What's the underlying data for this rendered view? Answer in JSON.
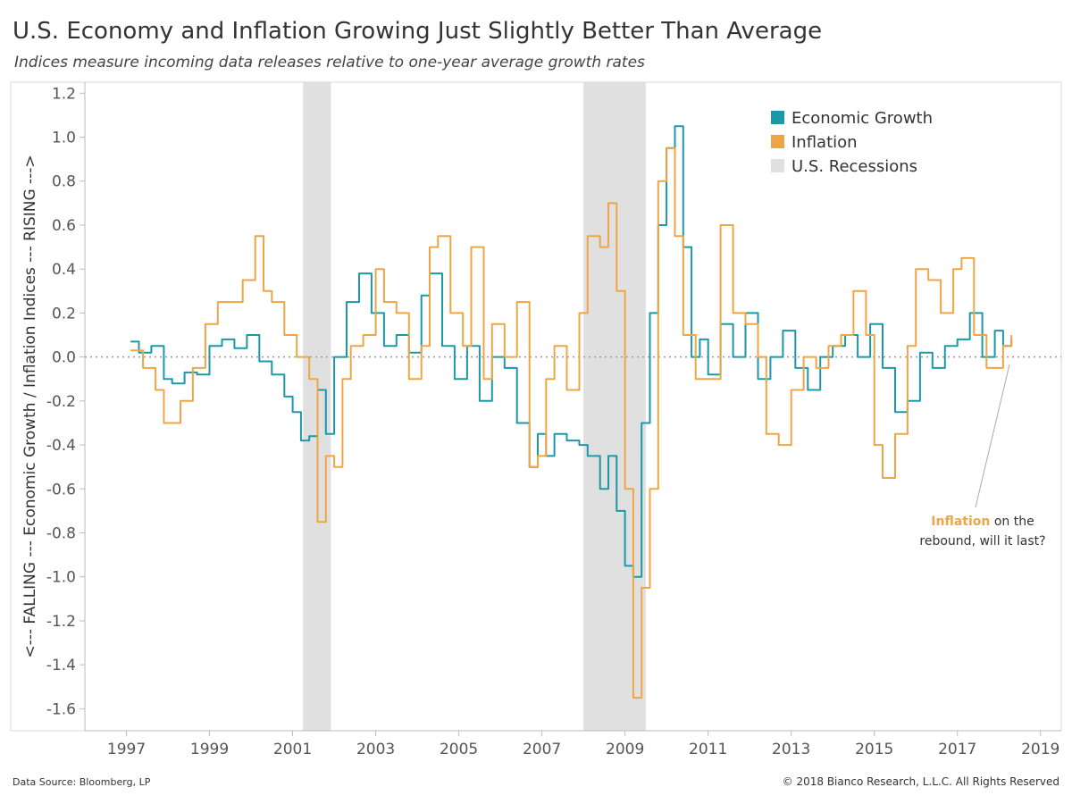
{
  "header": {
    "title": "U.S. Economy and Inflation Growing Just Slightly Better Than Average",
    "subtitle": "Indices measure incoming data releases relative to one-year average growth rates"
  },
  "footer": {
    "source": "Data Source: Bloomberg, LP",
    "copyright": "© 2018 Bianco Research, L.L.C. All Rights Reserved"
  },
  "colors": {
    "economic_growth": "#1a9aa8",
    "inflation": "#f0a545",
    "recession": "#e0e0e0",
    "zero_line": "#999999"
  },
  "chart_data": {
    "type": "line",
    "title": "U.S. Economy and Inflation Growing Just Slightly Better Than Average",
    "ylabel": "<--- FALLING --- Economic Growth / Inflation Indices --- RISING --->",
    "xlabel": "",
    "xlim": [
      1996.0,
      2019.5
    ],
    "ylim": [
      -1.7,
      1.25
    ],
    "x_ticks": [
      "1997",
      "1999",
      "2001",
      "2003",
      "2005",
      "2007",
      "2009",
      "2011",
      "2013",
      "2015",
      "2017",
      "2019"
    ],
    "y_ticks": [
      "1.2",
      "1.0",
      "0.8",
      "0.6",
      "0.4",
      "0.2",
      "0.0",
      "-0.2",
      "-0.4",
      "-0.6",
      "-0.8",
      "-1.0",
      "-1.2",
      "-1.4",
      "-1.6"
    ],
    "legend": {
      "position": "top-right",
      "entries": [
        "Economic Growth",
        "Inflation",
        "U.S. Recessions"
      ]
    },
    "recessions": [
      {
        "start": 2001.25,
        "end": 2001.92
      },
      {
        "start": 2008.0,
        "end": 2009.5
      }
    ],
    "series": [
      {
        "name": "Economic Growth",
        "color": "#1a9aa8",
        "x": [
          1997.1,
          1997.3,
          1997.6,
          1997.9,
          1998.1,
          1998.4,
          1998.7,
          1999.0,
          1999.3,
          1999.6,
          1999.9,
          2000.2,
          2000.5,
          2000.8,
          2001.0,
          2001.2,
          2001.4,
          2001.6,
          2001.8,
          2002.0,
          2002.3,
          2002.6,
          2002.9,
          2003.2,
          2003.5,
          2003.8,
          2004.1,
          2004.3,
          2004.6,
          2004.9,
          2005.2,
          2005.5,
          2005.8,
          2006.1,
          2006.4,
          2006.7,
          2006.9,
          2007.1,
          2007.3,
          2007.6,
          2007.9,
          2008.1,
          2008.4,
          2008.6,
          2008.8,
          2009.0,
          2009.2,
          2009.4,
          2009.6,
          2009.8,
          2010.0,
          2010.2,
          2010.4,
          2010.6,
          2010.8,
          2011.0,
          2011.3,
          2011.6,
          2011.9,
          2012.2,
          2012.5,
          2012.8,
          2013.1,
          2013.4,
          2013.7,
          2014.0,
          2014.3,
          2014.6,
          2014.9,
          2015.2,
          2015.5,
          2015.8,
          2016.1,
          2016.4,
          2016.7,
          2017.0,
          2017.3,
          2017.6,
          2017.9,
          2018.1,
          2018.3
        ],
        "y": [
          0.07,
          0.02,
          0.05,
          -0.1,
          -0.12,
          -0.07,
          -0.08,
          0.05,
          0.08,
          0.04,
          0.1,
          -0.02,
          -0.08,
          -0.18,
          -0.25,
          -0.38,
          -0.36,
          -0.15,
          -0.35,
          0.0,
          0.25,
          0.38,
          0.2,
          0.05,
          0.1,
          0.02,
          0.28,
          0.38,
          0.05,
          -0.1,
          0.05,
          -0.2,
          0.0,
          -0.05,
          -0.3,
          -0.5,
          -0.35,
          -0.45,
          -0.35,
          -0.38,
          -0.4,
          -0.45,
          -0.6,
          -0.45,
          -0.7,
          -0.95,
          -1.0,
          -0.3,
          0.2,
          0.6,
          0.95,
          1.05,
          0.5,
          0.0,
          0.08,
          -0.08,
          0.15,
          0.0,
          0.2,
          -0.1,
          0.0,
          0.12,
          -0.05,
          -0.15,
          0.0,
          0.05,
          0.1,
          0.0,
          0.15,
          -0.05,
          -0.25,
          -0.2,
          0.02,
          -0.05,
          0.05,
          0.08,
          0.2,
          0.0,
          0.12,
          0.05,
          0.08
        ]
      },
      {
        "name": "Inflation",
        "color": "#f0a545",
        "x": [
          1997.1,
          1997.4,
          1997.7,
          1997.9,
          1998.1,
          1998.3,
          1998.6,
          1998.9,
          1999.2,
          1999.5,
          1999.8,
          2000.1,
          2000.3,
          2000.5,
          2000.8,
          2001.1,
          2001.4,
          2001.6,
          2001.8,
          2002.0,
          2002.2,
          2002.4,
          2002.7,
          2003.0,
          2003.2,
          2003.5,
          2003.8,
          2004.1,
          2004.3,
          2004.5,
          2004.8,
          2005.1,
          2005.3,
          2005.6,
          2005.8,
          2006.1,
          2006.4,
          2006.7,
          2006.9,
          2007.1,
          2007.3,
          2007.6,
          2007.9,
          2008.1,
          2008.4,
          2008.6,
          2008.8,
          2009.0,
          2009.2,
          2009.4,
          2009.6,
          2009.8,
          2010.0,
          2010.2,
          2010.4,
          2010.7,
          2011.0,
          2011.3,
          2011.6,
          2011.9,
          2012.2,
          2012.4,
          2012.7,
          2013.0,
          2013.3,
          2013.6,
          2013.9,
          2014.2,
          2014.5,
          2014.8,
          2015.0,
          2015.2,
          2015.5,
          2015.8,
          2016.0,
          2016.3,
          2016.6,
          2016.9,
          2017.1,
          2017.4,
          2017.7,
          2017.9,
          2018.1,
          2018.3
        ],
        "y": [
          0.03,
          -0.05,
          -0.15,
          -0.3,
          -0.3,
          -0.2,
          -0.05,
          0.15,
          0.25,
          0.25,
          0.35,
          0.55,
          0.3,
          0.25,
          0.1,
          0.0,
          -0.1,
          -0.75,
          -0.45,
          -0.5,
          -0.1,
          0.05,
          0.1,
          0.4,
          0.25,
          0.2,
          -0.1,
          0.05,
          0.5,
          0.55,
          0.2,
          0.05,
          0.5,
          -0.1,
          0.15,
          0.0,
          0.25,
          -0.5,
          -0.45,
          -0.1,
          0.05,
          -0.15,
          0.2,
          0.55,
          0.5,
          0.7,
          0.3,
          -0.6,
          -1.55,
          -1.05,
          -0.6,
          0.8,
          0.95,
          0.55,
          0.1,
          -0.1,
          -0.1,
          0.6,
          0.2,
          0.15,
          0.0,
          -0.35,
          -0.4,
          -0.15,
          0.0,
          -0.05,
          0.05,
          0.1,
          0.3,
          0.1,
          -0.4,
          -0.55,
          -0.35,
          0.05,
          0.4,
          0.35,
          0.2,
          0.4,
          0.45,
          0.1,
          -0.05,
          -0.05,
          0.05,
          0.1
        ]
      }
    ],
    "annotation": {
      "highlight": "Inflation",
      "line1_rest": " on the",
      "line2": "rebound, will it last?"
    }
  }
}
